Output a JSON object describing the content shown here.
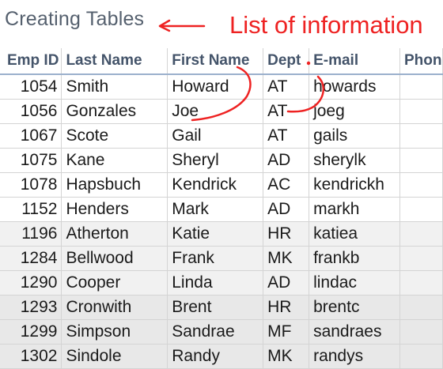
{
  "sheet": {
    "title": "Creating Tables",
    "annotation": "List of information",
    "headers": [
      "Emp ID",
      "Last Name",
      "First Name",
      "Dept",
      "E-mail",
      "Phon"
    ],
    "rows": [
      {
        "emp_id": "1054",
        "last_name": "Smith",
        "first_name": "Howard",
        "dept": "AT",
        "email": "howards"
      },
      {
        "emp_id": "1056",
        "last_name": "Gonzales",
        "first_name": "Joe",
        "dept": "AT",
        "email": "joeg"
      },
      {
        "emp_id": "1067",
        "last_name": "Scote",
        "first_name": "Gail",
        "dept": "AT",
        "email": "gails"
      },
      {
        "emp_id": "1075",
        "last_name": "Kane",
        "first_name": "Sheryl",
        "dept": "AD",
        "email": "sherylk"
      },
      {
        "emp_id": "1078",
        "last_name": "Hapsbuch",
        "first_name": "Kendrick",
        "dept": "AC",
        "email": "kendrickh"
      },
      {
        "emp_id": "1152",
        "last_name": "Henders",
        "first_name": "Mark",
        "dept": "AD",
        "email": "markh"
      },
      {
        "emp_id": "1196",
        "last_name": "Atherton",
        "first_name": "Katie",
        "dept": "HR",
        "email": "katiea"
      },
      {
        "emp_id": "1284",
        "last_name": "Bellwood",
        "first_name": "Frank",
        "dept": "MK",
        "email": "frankb"
      },
      {
        "emp_id": "1290",
        "last_name": "Cooper",
        "first_name": "Linda",
        "dept": "AD",
        "email": "lindac"
      },
      {
        "emp_id": "1293",
        "last_name": "Cronwith",
        "first_name": "Brent",
        "dept": "HR",
        "email": "brentc"
      },
      {
        "emp_id": "1299",
        "last_name": "Simpson",
        "first_name": "Sandrae",
        "dept": "MF",
        "email": "sandraes"
      },
      {
        "emp_id": "1302",
        "last_name": "Sindole",
        "first_name": "Randy",
        "dept": "MK",
        "email": "randys"
      }
    ]
  },
  "colors": {
    "annotation_red": "#ee2222",
    "header_text": "#44546a",
    "title_text": "#55606e"
  },
  "icons": {
    "annotation_arrow": "left-arrow-icon"
  }
}
